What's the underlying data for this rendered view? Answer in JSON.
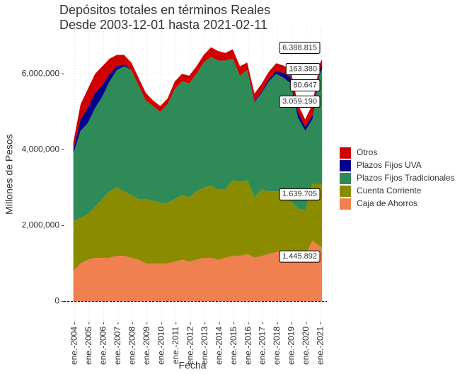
{
  "chart_data": {
    "type": "stacked_area",
    "title": "Depósitos totales en términos Reales",
    "subtitle": "Desde 2003-12-01 hasta 2021-02-11",
    "x_label": "Fecha",
    "y_label": "Millones de Pesos",
    "x": [
      "2003-12",
      "2004-06",
      "2004-12",
      "2005-06",
      "2005-12",
      "2006-06",
      "2006-12",
      "2007-06",
      "2007-12",
      "2008-06",
      "2008-12",
      "2009-06",
      "2009-12",
      "2010-06",
      "2010-12",
      "2011-06",
      "2011-12",
      "2012-06",
      "2012-12",
      "2013-06",
      "2013-12",
      "2014-06",
      "2014-12",
      "2015-06",
      "2015-12",
      "2016-06",
      "2016-12",
      "2017-06",
      "2017-12",
      "2018-06",
      "2018-12",
      "2019-06",
      "2019-12",
      "2020-06",
      "2020-12",
      "2021-02"
    ],
    "series": [
      {
        "name": "Otros",
        "color": "#d00000",
        "end_label": "163.380",
        "values": [
          200000,
          400000,
          500000,
          500000,
          500000,
          400000,
          300000,
          250000,
          200000,
          200000,
          200000,
          150000,
          150000,
          150000,
          200000,
          200000,
          200000,
          200000,
          200000,
          250000,
          250000,
          200000,
          250000,
          250000,
          200000,
          200000,
          200000,
          200000,
          200000,
          200000,
          200000,
          200000,
          200000,
          300000,
          180000,
          163380
        ]
      },
      {
        "name": "Plazos Fijos UVA",
        "color": "#00008b",
        "end_label": "80.647",
        "values": [
          100000,
          300000,
          400000,
          400000,
          300000,
          200000,
          100000,
          50000,
          0,
          0,
          0,
          0,
          0,
          0,
          0,
          0,
          0,
          0,
          0,
          0,
          0,
          0,
          0,
          0,
          0,
          30000,
          40000,
          60000,
          80000,
          120000,
          150000,
          150000,
          100000,
          100000,
          80000,
          80647
        ]
      },
      {
        "name": "Plazos Fijos Tradicionales",
        "color": "#2e8b57",
        "end_label": "3.059.190",
        "values": [
          1800000,
          2300000,
          2400000,
          2600000,
          2700000,
          2900000,
          3100000,
          3300000,
          3300000,
          3000000,
          2600000,
          2500000,
          2400000,
          2600000,
          2900000,
          3000000,
          3000000,
          3100000,
          3300000,
          3400000,
          3400000,
          3400000,
          3200000,
          2800000,
          2900000,
          2500000,
          2550000,
          2900000,
          3100000,
          3000000,
          3100000,
          2400000,
          2100000,
          1700000,
          2900000,
          3059190
        ]
      },
      {
        "name": "Cuenta Corriente",
        "color": "#8b8b00",
        "end_label": "1.639.705",
        "values": [
          1300000,
          1200000,
          1200000,
          1350000,
          1550000,
          1750000,
          1800000,
          1700000,
          1650000,
          1600000,
          1700000,
          1650000,
          1600000,
          1600000,
          1650000,
          1700000,
          1700000,
          1800000,
          1850000,
          1900000,
          1850000,
          1800000,
          2000000,
          1950000,
          1950000,
          1600000,
          1750000,
          1650000,
          1600000,
          1550000,
          1400000,
          1300000,
          1200000,
          1500000,
          1650000,
          1639705
        ]
      },
      {
        "name": "Caja de Ahorros",
        "color": "#f08050",
        "end_label": "1.445.892",
        "values": [
          800000,
          1000000,
          1100000,
          1150000,
          1150000,
          1150000,
          1200000,
          1200000,
          1150000,
          1100000,
          1000000,
          1000000,
          1000000,
          1000000,
          1050000,
          1100000,
          1050000,
          1100000,
          1150000,
          1150000,
          1100000,
          1150000,
          1200000,
          1200000,
          1250000,
          1150000,
          1200000,
          1250000,
          1300000,
          1350000,
          1250000,
          1150000,
          1200000,
          1600000,
          1450000,
          1445892
        ]
      }
    ],
    "total_label": "6.388.815",
    "xlim": [
      "2003-04",
      "2021-06"
    ],
    "xticks": [
      {
        "value": "2004-01",
        "label": "ene.-2004"
      },
      {
        "value": "2005-01",
        "label": "ene.-2005"
      },
      {
        "value": "2006-01",
        "label": "ene.-2006"
      },
      {
        "value": "2007-01",
        "label": "ene.-2007"
      },
      {
        "value": "2008-01",
        "label": "ene.-2008"
      },
      {
        "value": "2009-01",
        "label": "ene.-2009"
      },
      {
        "value": "2010-01",
        "label": "ene.-2010"
      },
      {
        "value": "2011-01",
        "label": "ene.-2011"
      },
      {
        "value": "2012-01",
        "label": "ene.-2012"
      },
      {
        "value": "2013-01",
        "label": "ene.-2013"
      },
      {
        "value": "2014-01",
        "label": "ene.-2014"
      },
      {
        "value": "2015-01",
        "label": "ene.-2015"
      },
      {
        "value": "2016-01",
        "label": "ene.-2016"
      },
      {
        "value": "2017-01",
        "label": "ene.-2017"
      },
      {
        "value": "2018-01",
        "label": "ene.-2018"
      },
      {
        "value": "2019-01",
        "label": "ene.-2019"
      },
      {
        "value": "2020-01",
        "label": "ene.-2020"
      },
      {
        "value": "2021-01",
        "label": "ene.-2021"
      }
    ],
    "ylim": [
      -550000,
      7200000
    ],
    "yticks": [
      0,
      {
        "value": 2000000,
        "label": "2,000,000"
      },
      {
        "value": 4000000,
        "label": "4,000,000"
      },
      {
        "value": 6000000,
        "label": "6,000,000"
      }
    ],
    "grid": true,
    "legend_position": "right"
  }
}
